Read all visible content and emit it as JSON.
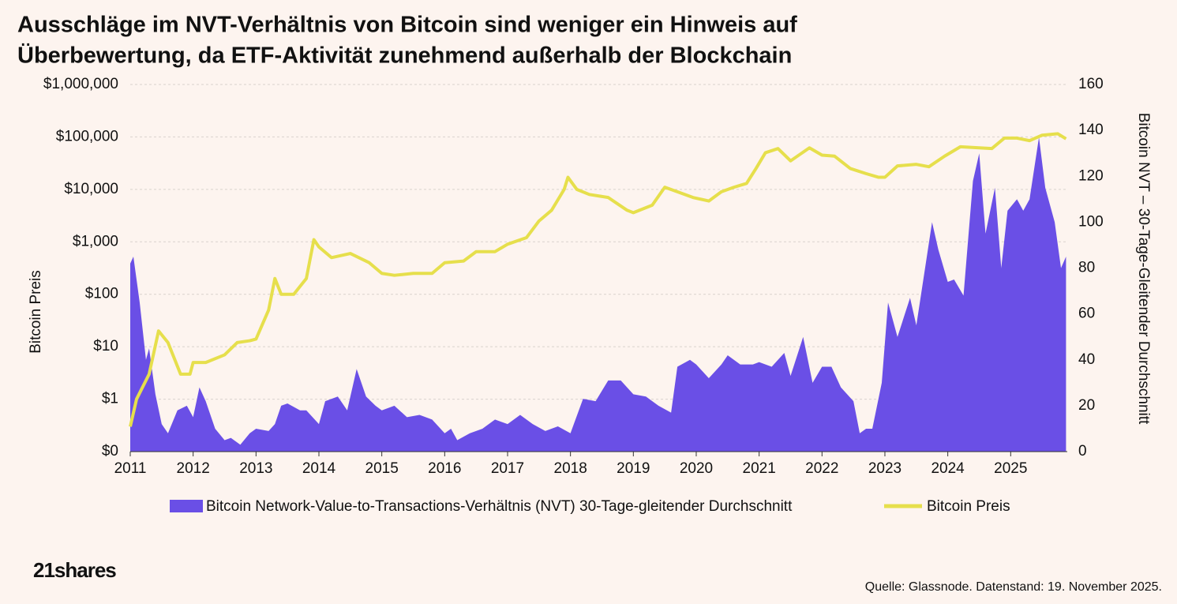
{
  "chart_data": {
    "type": "bar-line-dual",
    "title": [
      "Ausschläge im NVT-Verhältnis von Bitcoin sind weniger ein Hinweis auf",
      "Überbewertung, da ETF-Aktivität zunehmend außerhalb der Blockchain"
    ],
    "y_label": "Bitcoin Preis",
    "y2_label": "Bitcoin NVT – 30-Tage-Gleitender Durchschnitt",
    "source": "Quelle: Glassnode. Datenstand: 19. November 2025.",
    "logo": "21shares",
    "xlim": [
      2011,
      2025.9
    ],
    "xticks": [
      2011,
      2012,
      2013,
      2014,
      2015,
      2016,
      2017,
      2018,
      2019,
      2020,
      2021,
      2022,
      2023,
      2024,
      2025
    ],
    "ylim": [
      0.1,
      1000000
    ],
    "log_y": true,
    "yticks": [
      {
        "value": 0.1,
        "label": "$0"
      },
      {
        "value": 1,
        "label": "$1"
      },
      {
        "value": 10,
        "label": "$10"
      },
      {
        "value": 100,
        "label": "$100"
      },
      {
        "value": 1000,
        "label": "$1,000"
      },
      {
        "value": 10000,
        "label": "$10,000"
      },
      {
        "value": 100000,
        "label": "$100,000"
      },
      {
        "value": 1000000,
        "label": "$1,000,000"
      }
    ],
    "y2lim": [
      0,
      160
    ],
    "y2ticks": [
      0,
      20,
      40,
      60,
      80,
      100,
      120,
      140,
      160
    ],
    "grid": true,
    "series": [
      {
        "name": "Bitcoin Network-Value-to-Transactions-Verhältnis (NVT) 30-Tage-gleitender Durchschnitt",
        "type": "area",
        "axis": "y2",
        "color": "#6a4fe6",
        "x": [
          2011.0,
          2011.05,
          2011.15,
          2011.25,
          2011.3,
          2011.4,
          2011.5,
          2011.6,
          2011.75,
          2011.9,
          2012.0,
          2012.1,
          2012.2,
          2012.35,
          2012.5,
          2012.6,
          2012.75,
          2012.9,
          2013.0,
          2013.2,
          2013.3,
          2013.4,
          2013.5,
          2013.7,
          2013.8,
          2014.0,
          2014.1,
          2014.3,
          2014.45,
          2014.6,
          2014.75,
          2014.9,
          2015.0,
          2015.2,
          2015.4,
          2015.6,
          2015.8,
          2016.0,
          2016.1,
          2016.2,
          2016.4,
          2016.6,
          2016.8,
          2017.0,
          2017.2,
          2017.4,
          2017.6,
          2017.8,
          2018.0,
          2018.2,
          2018.4,
          2018.6,
          2018.8,
          2019.0,
          2019.2,
          2019.4,
          2019.6,
          2019.7,
          2019.9,
          2020.0,
          2020.2,
          2020.4,
          2020.5,
          2020.7,
          2020.9,
          2021.0,
          2021.2,
          2021.4,
          2021.5,
          2021.7,
          2021.85,
          2022.0,
          2022.15,
          2022.3,
          2022.5,
          2022.6,
          2022.7,
          2022.8,
          2022.95,
          2023.05,
          2023.2,
          2023.4,
          2023.5,
          2023.65,
          2023.75,
          2023.85,
          2024.0,
          2024.1,
          2024.25,
          2024.4,
          2024.5,
          2024.6,
          2024.75,
          2024.85,
          2024.95,
          2025.1,
          2025.2,
          2025.3,
          2025.45,
          2025.55,
          2025.7,
          2025.8,
          2025.88
        ],
        "values": [
          82,
          85,
          65,
          40,
          45,
          25,
          12,
          8,
          18,
          20,
          15,
          28,
          22,
          10,
          5,
          6,
          3,
          8,
          10,
          9,
          12,
          20,
          21,
          18,
          18,
          12,
          22,
          24,
          18,
          36,
          24,
          20,
          18,
          20,
          15,
          16,
          14,
          8,
          10,
          5,
          8,
          10,
          14,
          12,
          16,
          12,
          9,
          11,
          8,
          23,
          22,
          31,
          31,
          25,
          24,
          20,
          17,
          37,
          40,
          38,
          32,
          38,
          42,
          38,
          38,
          39,
          37,
          43,
          33,
          50,
          30,
          37,
          37,
          28,
          22,
          8,
          10,
          10,
          30,
          65,
          50,
          67,
          55,
          82,
          100,
          88,
          74,
          75,
          68,
          118,
          130,
          95,
          115,
          80,
          105,
          110,
          105,
          110,
          137,
          115,
          100,
          80,
          85
        ]
      },
      {
        "name": "Bitcoin Preis",
        "type": "line",
        "axis": "y",
        "color": "#e6df4c",
        "x": [
          2011.0,
          2011.1,
          2011.3,
          2011.45,
          2011.6,
          2011.8,
          2011.95,
          2012.0,
          2012.2,
          2012.5,
          2012.7,
          2012.9,
          2013.0,
          2013.2,
          2013.3,
          2013.4,
          2013.6,
          2013.8,
          2013.92,
          2014.0,
          2014.2,
          2014.5,
          2014.8,
          2015.0,
          2015.2,
          2015.5,
          2015.8,
          2016.0,
          2016.3,
          2016.5,
          2016.8,
          2017.0,
          2017.3,
          2017.5,
          2017.7,
          2017.9,
          2017.96,
          2018.1,
          2018.3,
          2018.6,
          2018.9,
          2019.0,
          2019.3,
          2019.5,
          2019.7,
          2019.95,
          2020.2,
          2020.4,
          2020.6,
          2020.8,
          2020.95,
          2021.1,
          2021.3,
          2021.5,
          2021.8,
          2022.0,
          2022.2,
          2022.45,
          2022.7,
          2022.9,
          2023.0,
          2023.2,
          2023.5,
          2023.7,
          2023.95,
          2024.2,
          2024.5,
          2024.7,
          2024.9,
          2025.1,
          2025.3,
          2025.5,
          2025.75,
          2025.88
        ],
        "values": [
          0.3,
          1,
          3,
          20,
          12,
          3,
          3,
          5,
          5,
          7,
          12,
          13,
          14,
          50,
          200,
          100,
          100,
          200,
          1100,
          800,
          500,
          600,
          400,
          250,
          230,
          250,
          250,
          400,
          430,
          650,
          650,
          900,
          1200,
          2500,
          4000,
          10000,
          17000,
          10000,
          8000,
          7000,
          4000,
          3600,
          5000,
          11000,
          9000,
          7000,
          6000,
          9000,
          11000,
          13000,
          25000,
          50000,
          60000,
          35000,
          62000,
          45000,
          43000,
          25000,
          20000,
          17000,
          17000,
          28000,
          30000,
          27000,
          43000,
          65000,
          62000,
          60000,
          95000,
          95000,
          85000,
          108000,
          115000,
          92000
        ]
      }
    ]
  }
}
